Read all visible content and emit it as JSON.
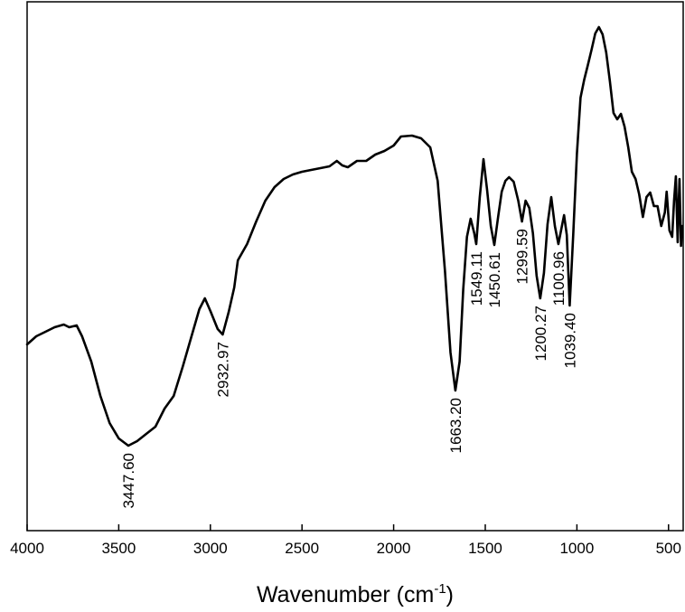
{
  "chart_data": {
    "type": "line",
    "xlabel_main": "Wavenumber (cm",
    "xlabel_sup": "-1",
    "xlabel_close": ")",
    "xlim": [
      4000,
      420
    ],
    "x_reversed": true,
    "y_axis_shown": false,
    "grid": false,
    "legend": "none",
    "line_color": "#000000",
    "x_ticks": [
      4000,
      3500,
      3000,
      2500,
      2000,
      1500,
      1000,
      500
    ],
    "x_tick_labels": [
      "4000",
      "3500",
      "3000",
      "2500",
      "2000",
      "1500",
      "1000",
      "500"
    ],
    "series": [
      {
        "points": [
          [
            4000,
            381
          ],
          [
            3950,
            372
          ],
          [
            3900,
            367
          ],
          [
            3850,
            362
          ],
          [
            3800,
            359
          ],
          [
            3770,
            362
          ],
          [
            3730,
            360
          ],
          [
            3700,
            372
          ],
          [
            3650,
            400
          ],
          [
            3600,
            438
          ],
          [
            3550,
            468
          ],
          [
            3500,
            485
          ],
          [
            3447.6,
            493
          ],
          [
            3400,
            488
          ],
          [
            3350,
            480
          ],
          [
            3300,
            472
          ],
          [
            3250,
            452
          ],
          [
            3200,
            438
          ],
          [
            3150,
            405
          ],
          [
            3100,
            370
          ],
          [
            3060,
            342
          ],
          [
            3030,
            330
          ],
          [
            3000,
            344
          ],
          [
            2960,
            364
          ],
          [
            2932.97,
            370
          ],
          [
            2900,
            345
          ],
          [
            2870,
            318
          ],
          [
            2850,
            288
          ],
          [
            2800,
            270
          ],
          [
            2750,
            245
          ],
          [
            2700,
            222
          ],
          [
            2650,
            207
          ],
          [
            2600,
            198
          ],
          [
            2550,
            193
          ],
          [
            2500,
            190
          ],
          [
            2450,
            188
          ],
          [
            2400,
            186
          ],
          [
            2350,
            184
          ],
          [
            2310,
            178
          ],
          [
            2280,
            183
          ],
          [
            2250,
            185
          ],
          [
            2200,
            178
          ],
          [
            2150,
            178
          ],
          [
            2100,
            171
          ],
          [
            2050,
            167
          ],
          [
            2000,
            161
          ],
          [
            1960,
            151
          ],
          [
            1900,
            150
          ],
          [
            1850,
            153
          ],
          [
            1800,
            163
          ],
          [
            1760,
            200
          ],
          [
            1720,
            300
          ],
          [
            1690,
            390
          ],
          [
            1663.2,
            432
          ],
          [
            1640,
            400
          ],
          [
            1620,
            320
          ],
          [
            1600,
            262
          ],
          [
            1580,
            242
          ],
          [
            1560,
            258
          ],
          [
            1549.11,
            270
          ],
          [
            1530,
            218
          ],
          [
            1510,
            176
          ],
          [
            1490,
            210
          ],
          [
            1470,
            250
          ],
          [
            1450.61,
            271
          ],
          [
            1430,
            240
          ],
          [
            1410,
            212
          ],
          [
            1390,
            200
          ],
          [
            1370,
            196
          ],
          [
            1345,
            201
          ],
          [
            1320,
            222
          ],
          [
            1299.59,
            245
          ],
          [
            1280,
            222
          ],
          [
            1260,
            230
          ],
          [
            1240,
            258
          ],
          [
            1220,
            305
          ],
          [
            1200.27,
            330
          ],
          [
            1180,
            302
          ],
          [
            1160,
            248
          ],
          [
            1140,
            218
          ],
          [
            1120,
            250
          ],
          [
            1100.96,
            270
          ],
          [
            1080,
            248
          ],
          [
            1070,
            238
          ],
          [
            1055,
            260
          ],
          [
            1039.4,
            338
          ],
          [
            1020,
            260
          ],
          [
            1000,
            170
          ],
          [
            980,
            108
          ],
          [
            960,
            88
          ],
          [
            940,
            72
          ],
          [
            920,
            55
          ],
          [
            900,
            37
          ],
          [
            880,
            30
          ],
          [
            860,
            38
          ],
          [
            840,
            58
          ],
          [
            820,
            90
          ],
          [
            800,
            125
          ],
          [
            780,
            132
          ],
          [
            760,
            126
          ],
          [
            740,
            140
          ],
          [
            720,
            163
          ],
          [
            700,
            190
          ],
          [
            680,
            198
          ],
          [
            660,
            215
          ],
          [
            640,
            240
          ],
          [
            620,
            218
          ],
          [
            600,
            213
          ],
          [
            580,
            228
          ],
          [
            560,
            228
          ],
          [
            540,
            250
          ],
          [
            520,
            235
          ],
          [
            510,
            212
          ],
          [
            495,
            255
          ],
          [
            480,
            262
          ],
          [
            470,
            222
          ],
          [
            460,
            195
          ],
          [
            450,
            268
          ],
          [
            445,
            230
          ],
          [
            440,
            198
          ],
          [
            432,
            272
          ],
          [
            425,
            250
          ]
        ]
      }
    ],
    "peak_labels": [
      "3447.60",
      "2932.97",
      "1663.20",
      "1549.11",
      "1450.61",
      "1299.59",
      "1200.27",
      "1100.96",
      "1039.40"
    ]
  }
}
